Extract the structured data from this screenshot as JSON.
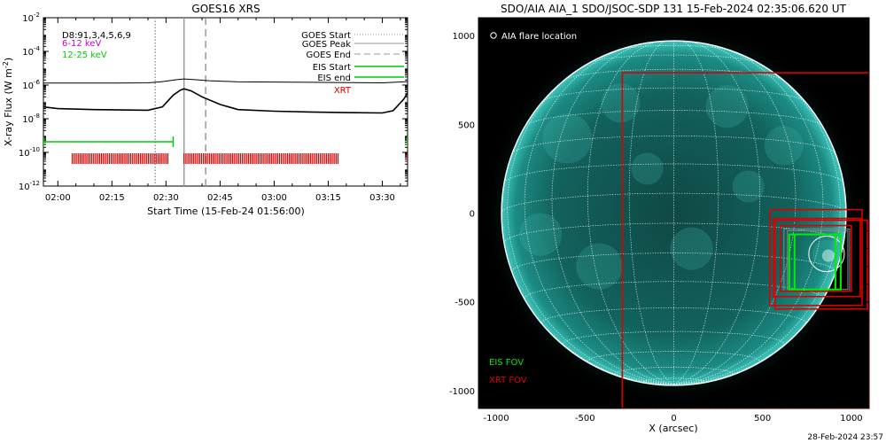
{
  "chart_data": [
    {
      "type": "line",
      "title": "GOES16 XRS",
      "xlabel": "Start Time (15-Feb-24 01:56:00)",
      "ylabel": "X-ray Flux (W m",
      "ylabel_sup": "-2",
      "ylabel_close": ")",
      "y_scale": "log",
      "ylim": [
        1e-12,
        0.01
      ],
      "xlim": [
        "01:56",
        "03:37"
      ],
      "y_ticks": [
        {
          "exp": "-2",
          "value": 0.01
        },
        {
          "exp": "-4",
          "value": 0.0001
        },
        {
          "exp": "-6",
          "value": 1e-06
        },
        {
          "exp": "-8",
          "value": 1e-08
        },
        {
          "exp": "-10",
          "value": 1e-10
        },
        {
          "exp": "-12",
          "value": 1e-12
        }
      ],
      "x_ticks": [
        "02:00",
        "02:15",
        "02:30",
        "02:45",
        "03:00",
        "03:15",
        "03:30"
      ],
      "grid": false,
      "legend_left": [
        {
          "label": "D8:91,3,4,5,6,9",
          "color": "#000000"
        },
        {
          "label": "6-12 keV",
          "color": "#cc00cc"
        },
        {
          "label": "12-25 keV",
          "color": "#00cc00"
        }
      ],
      "legend_right": [
        {
          "label": "GOES Start",
          "style": "dotted",
          "color": "#999999"
        },
        {
          "label": "GOES Peak",
          "style": "solid",
          "color": "#999999"
        },
        {
          "label": "GOES End",
          "style": "dashed",
          "color": "#999999"
        },
        {
          "label": "EIS Start",
          "style": "solid",
          "color": "#00cc00"
        },
        {
          "label": "EIS end",
          "style": "solid",
          "color": "#00cc00"
        },
        {
          "label": "XRT",
          "style": "text",
          "color": "#dd0000"
        }
      ],
      "event_lines": {
        "goes_start": "02:27",
        "goes_peak": "02:35",
        "goes_end": "02:41"
      },
      "series": [
        {
          "color": "#000000",
          "x": [
            "01:56",
            "02:10",
            "02:25",
            "02:29",
            "02:33",
            "02:35",
            "02:38",
            "02:42",
            "02:50",
            "03:10",
            "03:30",
            "03:37"
          ],
          "values": [
            1.3e-06,
            1.3e-06,
            1.35e-06,
            1.6e-06,
            2.1e-06,
            2.3e-06,
            2.1e-06,
            1.8e-06,
            1.55e-06,
            1.45e-06,
            1.35e-06,
            1.6e-06
          ]
        },
        {
          "color": "#000000",
          "x": [
            "01:56",
            "02:00",
            "02:10",
            "02:25",
            "02:29",
            "02:32",
            "02:34",
            "02:35",
            "02:37",
            "02:40",
            "02:45",
            "02:50",
            "03:00",
            "03:10",
            "03:20",
            "03:30",
            "03:33",
            "03:36",
            "03:37"
          ],
          "values": [
            5e-08,
            4e-08,
            3.5e-08,
            3.2e-08,
            5e-08,
            2.5e-07,
            5e-07,
            6e-07,
            4.5e-07,
            2e-07,
            7e-08,
            3.5e-08,
            2.8e-08,
            2.5e-08,
            2.3e-08,
            2.2e-08,
            3e-08,
            1.5e-07,
            3.5e-07
          ]
        }
      ],
      "eis_intervals": [
        [
          "01:56",
          "02:32"
        ],
        [
          "03:37",
          "03:37"
        ]
      ],
      "xrt_segments": [
        [
          "02:04",
          "02:31"
        ],
        [
          "02:35",
          "03:18"
        ],
        [
          "03:37",
          "03:37"
        ]
      ]
    },
    {
      "type": "image",
      "title": "SDO/AIA AIA_1 SDO/JSOC-SDP 131 15-Feb-2024 02:35:06.620 UT",
      "xlabel": "X (arcsec)",
      "xlim": [
        -1100,
        1100
      ],
      "ylim": [
        -1100,
        1100
      ],
      "x_ticks": [
        -1000,
        -500,
        0,
        500,
        1000
      ],
      "y_ticks": [
        -1000,
        -500,
        0,
        500,
        1000
      ],
      "flare_label": "AIA flare location",
      "fov_legend": [
        {
          "label": "EIS FOV",
          "color": "#00ee00"
        },
        {
          "label": "XRT FOV",
          "color": "#dd0000"
        }
      ],
      "flare_location": {
        "x": 860,
        "y": -230,
        "r": 100
      },
      "xrt_fov": [
        {
          "x0": -290,
          "y0": -1100,
          "x1": 1100,
          "y1": 790
        },
        {
          "x0": 540,
          "y0": -520,
          "x1": 1060,
          "y1": 20
        },
        {
          "x0": 560,
          "y0": -470,
          "x1": 1050,
          "y1": -30
        },
        {
          "x0": 600,
          "y0": -440,
          "x1": 1000,
          "y1": -70
        },
        {
          "x0": 570,
          "y0": -540,
          "x1": 1090,
          "y1": -40
        }
      ],
      "grey_boxes": [
        {
          "x0": 620,
          "y0": -440,
          "x1": 990,
          "y1": -90
        },
        {
          "x0": 640,
          "y0": -430,
          "x1": 980,
          "y1": -100
        }
      ],
      "eis_fov": [
        {
          "x0": 650,
          "y0": -430,
          "x1": 940,
          "y1": -120
        }
      ]
    }
  ],
  "footer": {
    "timestamp": "28-Feb-2024 23:57"
  }
}
